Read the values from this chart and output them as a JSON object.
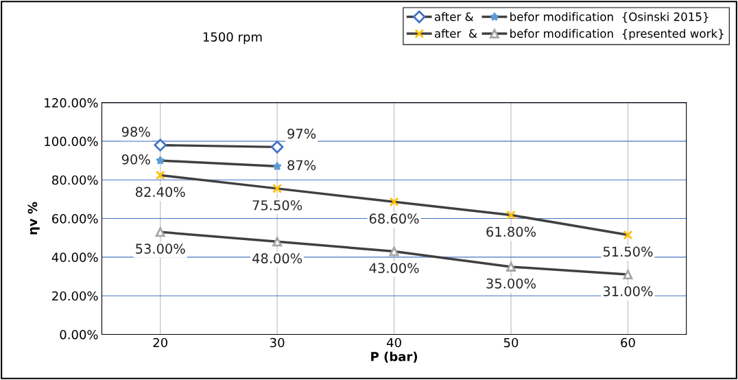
{
  "chart_data": {
    "type": "line",
    "categories": [
      "20",
      "30",
      "40",
      "50",
      "60"
    ],
    "series": [
      {
        "name": "after &",
        "color": "#4472c4",
        "marker": "diamond",
        "values": [
          98,
          97,
          null,
          null,
          null
        ],
        "value_labels": [
          "98%",
          "97%",
          null,
          null,
          null
        ]
      },
      {
        "name": "befor modification  {Osinski 2015}",
        "color": "#5b9bd5",
        "marker": "star",
        "values": [
          90,
          87,
          null,
          null,
          null
        ],
        "value_labels": [
          "90%",
          "87%",
          null,
          null,
          null
        ]
      },
      {
        "name": "after  &",
        "color": "#ffc000",
        "marker": "cross",
        "values": [
          82.4,
          75.5,
          68.6,
          61.8,
          51.5
        ],
        "value_labels": [
          "82.40%",
          "75.50%",
          "68.60%",
          "61.80%",
          "51.50%"
        ]
      },
      {
        "name": "befor modification  {presented work}",
        "color": "#a5a5a5",
        "marker": "triangle",
        "values": [
          53,
          48,
          43,
          35,
          31
        ],
        "value_labels": [
          "53.00%",
          "48.00%",
          "43.00%",
          "35.00%",
          "31.00%"
        ]
      }
    ],
    "xlabel": "P (bar)",
    "ylabel": "ηv %",
    "ylim": [
      0,
      120
    ],
    "yticks": [
      {
        "value": 0,
        "label": "0.00%"
      },
      {
        "value": 20,
        "label": "20.00%"
      },
      {
        "value": 40,
        "label": "40.00%"
      },
      {
        "value": 60,
        "label": "60.00%"
      },
      {
        "value": 80,
        "label": "80.00%"
      },
      {
        "value": 100,
        "label": "100.00%"
      },
      {
        "value": 120,
        "label": "120.00%"
      }
    ],
    "grid": true,
    "legend": "top right",
    "annotations": [
      "1500 rpm"
    ]
  }
}
